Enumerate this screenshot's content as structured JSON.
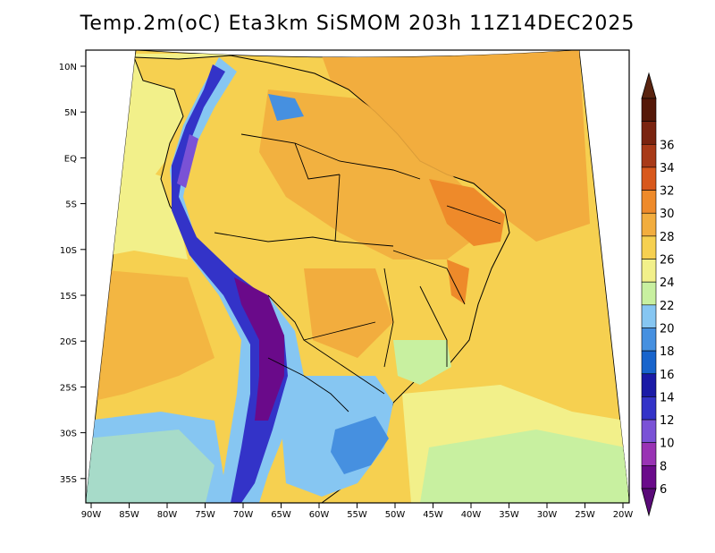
{
  "title": "Temp.2m(oC) Eta3km SiSMOM 203h 11Z14DEC2025",
  "map": {
    "projection": "Polar stereographic (fan-shaped domain)",
    "region": "South America",
    "variable": "2 m air temperature (°C)",
    "lat_labels": [
      "10N",
      "5N",
      "EQ",
      "5S",
      "10S",
      "15S",
      "20S",
      "25S",
      "30S",
      "35S"
    ],
    "lon_labels": [
      "90W",
      "85W",
      "80W",
      "75W",
      "70W",
      "65W",
      "60W",
      "55W",
      "50W",
      "45W",
      "40W",
      "35W",
      "30W",
      "25W",
      "20W"
    ]
  },
  "colorbar": {
    "levels": [
      "6",
      "8",
      "10",
      "12",
      "14",
      "16",
      "18",
      "20",
      "22",
      "24",
      "26",
      "28",
      "30",
      "32",
      "34",
      "36"
    ],
    "colors": [
      "#6a0a8a",
      "#9933b4",
      "#7a52d6",
      "#3333c8",
      "#1a1aa6",
      "#1864cc",
      "#4690e0",
      "#86c6f2",
      "#c8f0a0",
      "#f2f08a",
      "#f6d050",
      "#f2ad3e",
      "#ee8a2a",
      "#d8581c",
      "#a83a18",
      "#7a2410",
      "#551808"
    ],
    "under_color": "#5a0a78",
    "over_color": "#5a2410"
  }
}
